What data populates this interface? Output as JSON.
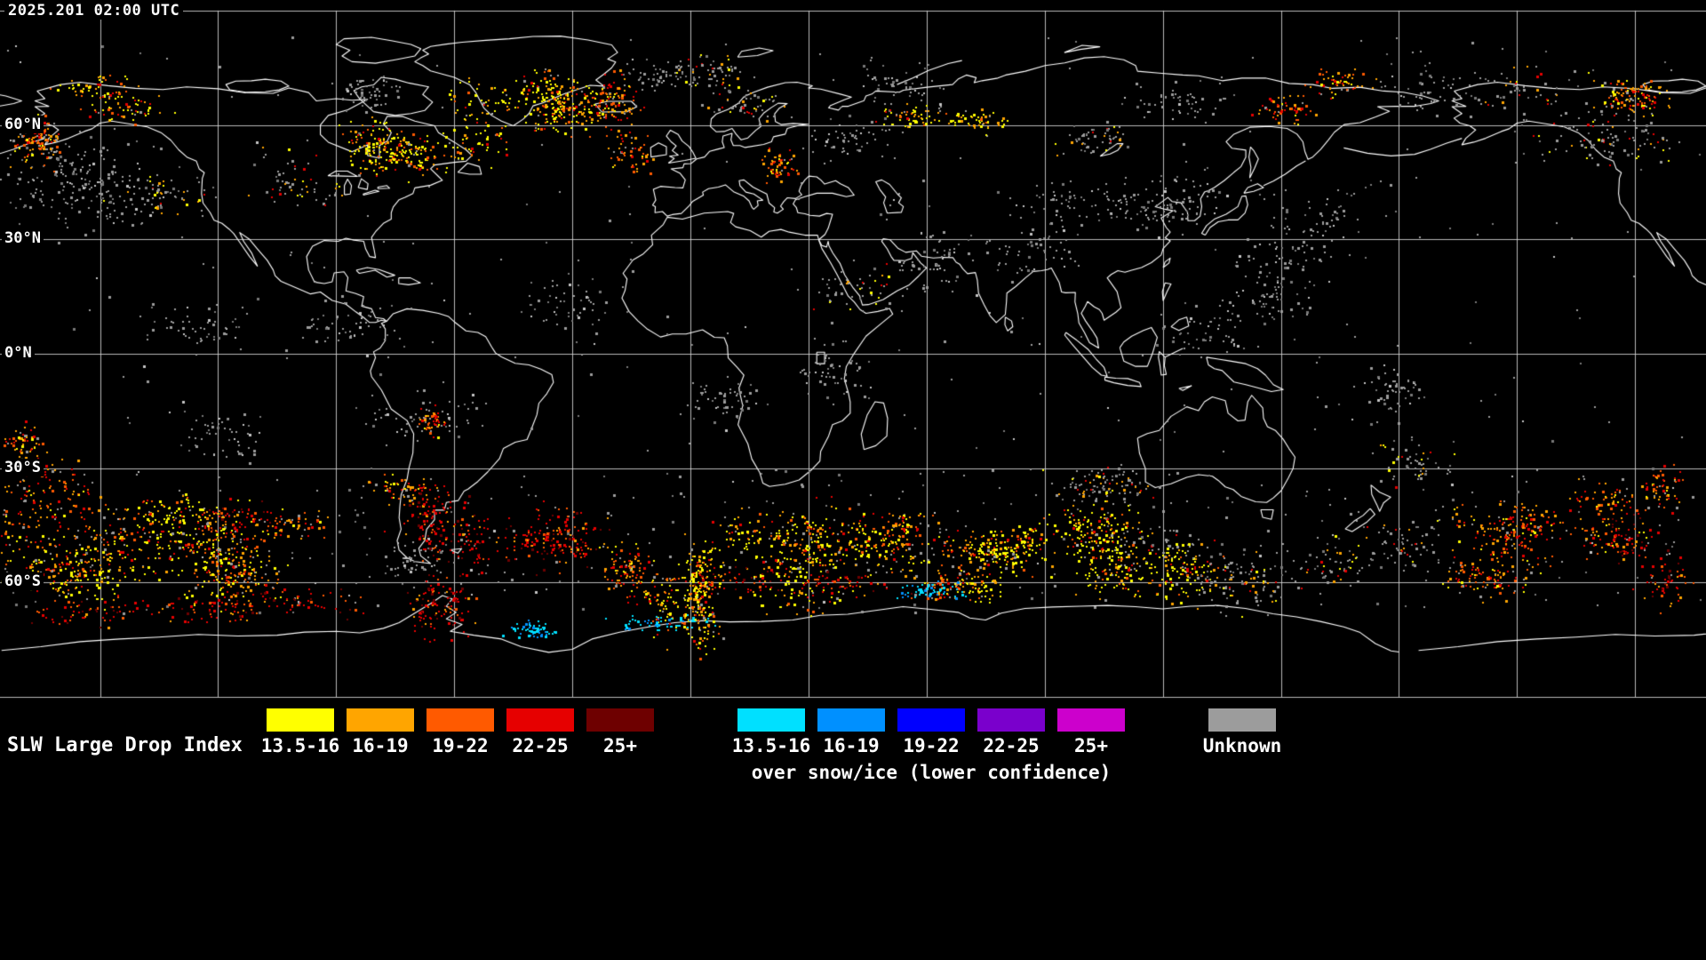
{
  "timestamp": "2025.201 02:00 UTC",
  "map": {
    "background": "#000000",
    "coastline_color": "#ffffff",
    "grid_color": "#d8d8d8",
    "grid": {
      "lon_step_deg": 30,
      "lat_step_deg": 30
    },
    "latitude_labels": [
      {
        "label": "60°N",
        "lat": 60
      },
      {
        "label": "30°N",
        "lat": 30
      },
      {
        "label": "0°N",
        "lat": 0
      },
      {
        "label": "30°S",
        "lat": -30
      },
      {
        "label": "60°S",
        "lat": -60
      }
    ],
    "palette": {
      "yellow": "#ffff00",
      "orange": "#ffa500",
      "dark_orange": "#ff5a00",
      "red": "#e60000",
      "dark_red": "#6e0000",
      "cyan": "#00e0ff",
      "light_blue": "#0090ff",
      "blue": "#0000ff",
      "purple": "#7a00cc",
      "magenta": "#cc00cc",
      "gray": "#9c9c9c",
      "dark_gray": "#787878"
    },
    "data_regions": [
      [
        "g",
        0,
        40,
        1920,
        470,
        240,
        0
      ],
      [
        "g",
        0,
        525,
        1920,
        165,
        420,
        0
      ],
      [
        "g",
        0,
        95,
        230,
        150,
        230,
        1
      ],
      [
        "w",
        0,
        125,
        85,
        70,
        120,
        1
      ],
      [
        "wi",
        70,
        95,
        150,
        55,
        100,
        1
      ],
      [
        "gw",
        150,
        140,
        190,
        90,
        130,
        1
      ],
      [
        "g",
        330,
        95,
        120,
        70,
        60,
        1
      ],
      [
        "wi",
        400,
        105,
        120,
        75,
        240,
        1
      ],
      [
        "wi",
        530,
        85,
        140,
        80,
        320,
        1
      ],
      [
        "w",
        660,
        105,
        90,
        85,
        170,
        1
      ],
      [
        "g",
        700,
        55,
        140,
        55,
        55,
        1
      ],
      [
        "gw",
        775,
        80,
        150,
        75,
        85,
        1
      ],
      [
        "w",
        855,
        140,
        60,
        60,
        70,
        1
      ],
      [
        "g",
        950,
        85,
        210,
        95,
        100,
        1
      ],
      [
        "wi",
        1005,
        110,
        110,
        40,
        85,
        1
      ],
      [
        "gw",
        1140,
        115,
        140,
        70,
        65,
        1
      ],
      [
        "g",
        1280,
        95,
        160,
        85,
        70,
        1
      ],
      [
        "w",
        1425,
        85,
        120,
        50,
        90,
        1
      ],
      [
        "g",
        1560,
        55,
        210,
        85,
        60,
        1
      ],
      [
        "gw",
        1700,
        80,
        220,
        120,
        140,
        1
      ],
      [
        "w",
        1790,
        90,
        120,
        45,
        85,
        1
      ],
      [
        "g",
        1150,
        225,
        200,
        95,
        160,
        1
      ],
      [
        "g",
        1310,
        195,
        210,
        120,
        160,
        1
      ],
      [
        "g",
        1430,
        250,
        160,
        110,
        80,
        1
      ],
      [
        "g",
        60,
        310,
        220,
        90,
        55,
        1
      ],
      [
        "g",
        250,
        275,
        190,
        110,
        60,
        1
      ],
      [
        "g",
        600,
        255,
        170,
        110,
        60,
        1
      ],
      [
        "gw",
        860,
        275,
        170,
        110,
        55,
        1
      ],
      [
        "g",
        1050,
        255,
        130,
        110,
        45,
        1
      ],
      [
        "g",
        390,
        385,
        230,
        115,
        80,
        1
      ],
      [
        "w",
        465,
        465,
        45,
        50,
        35,
        1
      ],
      [
        "g",
        900,
        375,
        150,
        110,
        45,
        1
      ],
      [
        "g",
        1320,
        355,
        210,
        115,
        80,
        1
      ],
      [
        "g",
        1450,
        390,
        130,
        85,
        45,
        1
      ],
      [
        "g",
        200,
        420,
        160,
        90,
        35,
        1
      ],
      [
        "g",
        700,
        430,
        140,
        90,
        35,
        1
      ],
      [
        "w",
        0,
        545,
        140,
        130,
        280,
        1
      ],
      [
        "wi",
        60,
        570,
        210,
        105,
        500,
        1
      ],
      [
        "r",
        100,
        640,
        240,
        55,
        180,
        1
      ],
      [
        "r",
        170,
        530,
        150,
        60,
        80,
        1
      ],
      [
        "w",
        230,
        555,
        130,
        95,
        130,
        1
      ],
      [
        "w",
        300,
        548,
        160,
        55,
        120,
        1
      ],
      [
        "g",
        330,
        595,
        150,
        80,
        80,
        1
      ],
      [
        "r",
        385,
        560,
        130,
        100,
        80,
        1
      ],
      [
        "r",
        470,
        575,
        80,
        115,
        200,
        1
      ],
      [
        "r",
        560,
        590,
        150,
        100,
        140,
        1
      ],
      [
        "w",
        655,
        615,
        110,
        85,
        110,
        1
      ],
      [
        "wi",
        738,
        590,
        70,
        115,
        260,
        1
      ],
      [
        "wi",
        815,
        580,
        190,
        90,
        450,
        1
      ],
      [
        "r",
        800,
        640,
        220,
        50,
        110,
        1
      ],
      [
        "w",
        1000,
        585,
        110,
        75,
        130,
        1
      ],
      [
        "wi",
        1082,
        600,
        110,
        65,
        200,
        1
      ],
      [
        "w",
        1045,
        630,
        100,
        50,
        80,
        1
      ],
      [
        "wi",
        1215,
        580,
        140,
        90,
        380,
        1
      ],
      [
        "gw",
        1300,
        550,
        160,
        105,
        190,
        1
      ],
      [
        "gw",
        1235,
        515,
        190,
        60,
        100,
        1
      ],
      [
        "gw",
        1450,
        555,
        140,
        95,
        100,
        1
      ],
      [
        "w",
        1560,
        570,
        150,
        90,
        150,
        1
      ],
      [
        "w",
        1700,
        555,
        130,
        70,
        140,
        1
      ],
      [
        "r",
        1815,
        570,
        105,
        95,
        100,
        1
      ],
      [
        "w",
        1855,
        480,
        65,
        105,
        55,
        1
      ],
      [
        "w",
        0,
        480,
        70,
        75,
        45,
        1
      ],
      [
        "gw",
        1545,
        470,
        160,
        85,
        60,
        1
      ],
      [
        "w",
        1640,
        590,
        110,
        65,
        70,
        1
      ],
      [
        "cy",
        745,
        668,
        200,
        35,
        35,
        1
      ],
      [
        "cy",
        1040,
        662,
        130,
        30,
        22,
        1
      ],
      [
        "cy",
        565,
        688,
        90,
        22,
        10,
        1
      ]
    ]
  },
  "legend": {
    "title": "SLW Large Drop Index",
    "standard_items": [
      {
        "label": "13.5-16",
        "color": "#ffff00"
      },
      {
        "label": "16-19",
        "color": "#ffa500"
      },
      {
        "label": "19-22",
        "color": "#ff5a00"
      },
      {
        "label": "22-25",
        "color": "#e60000"
      },
      {
        "label": "25+",
        "color": "#6e0000"
      }
    ],
    "snow_ice_items": [
      {
        "label": "13.5-16",
        "color": "#00e0ff"
      },
      {
        "label": "16-19",
        "color": "#0090ff"
      },
      {
        "label": "19-22",
        "color": "#0000ff"
      },
      {
        "label": "22-25",
        "color": "#7a00cc"
      },
      {
        "label": "25+",
        "color": "#cc00cc"
      }
    ],
    "snow_ice_caption": "over snow/ice (lower confidence)",
    "unknown_item": {
      "label": "Unknown",
      "color": "#9c9c9c"
    }
  }
}
